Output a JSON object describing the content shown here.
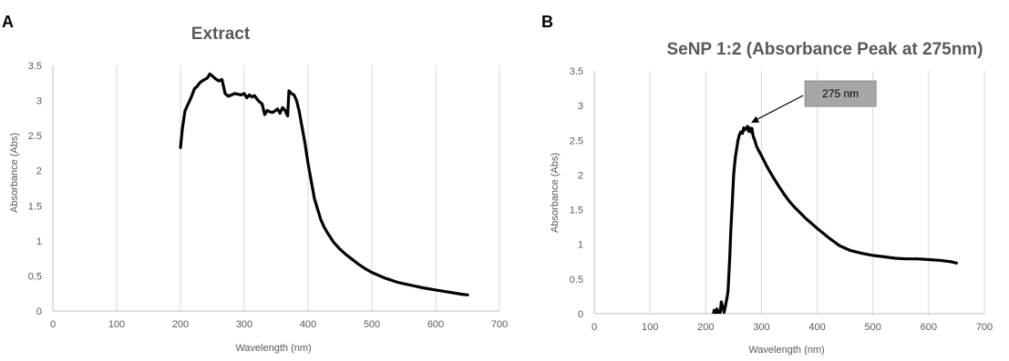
{
  "chart_data": [
    {
      "type": "line",
      "panel": "A",
      "title": "Extract",
      "xlabel": "Wavelength (nm)",
      "ylabel": "Absorbance (Abs)",
      "xlim": [
        0,
        700
      ],
      "ylim": [
        0,
        3.5
      ],
      "xticks": [
        0,
        100,
        200,
        300,
        400,
        500,
        600,
        700
      ],
      "yticks": [
        0,
        0.5,
        1,
        1.5,
        2,
        2.5,
        3,
        3.5
      ],
      "grid": "vertical",
      "legend": "none",
      "series": [
        {
          "x": [
            200,
            203,
            207,
            212,
            217,
            222,
            226,
            230,
            234,
            238,
            242,
            246,
            250,
            255,
            260,
            265,
            270,
            275,
            280,
            285,
            290,
            295,
            300,
            304,
            308,
            312,
            316,
            320,
            324,
            328,
            332,
            336,
            340,
            344,
            348,
            352,
            356,
            360,
            364,
            368,
            370,
            372,
            374,
            378,
            382,
            386,
            390,
            395,
            400,
            405,
            410,
            415,
            420,
            425,
            430,
            440,
            450,
            460,
            470,
            480,
            490,
            500,
            520,
            540,
            560,
            580,
            600,
            620,
            640,
            650
          ],
          "values": [
            2.33,
            2.6,
            2.85,
            2.95,
            3.05,
            3.17,
            3.2,
            3.25,
            3.28,
            3.3,
            3.32,
            3.38,
            3.35,
            3.31,
            3.28,
            3.3,
            3.1,
            3.06,
            3.08,
            3.1,
            3.09,
            3.08,
            3.1,
            3.04,
            3.08,
            3.05,
            3.07,
            3.02,
            2.98,
            2.95,
            2.8,
            2.86,
            2.84,
            2.83,
            2.85,
            2.88,
            2.82,
            2.9,
            2.86,
            2.78,
            3.14,
            3.12,
            3.1,
            3.08,
            3.0,
            2.85,
            2.65,
            2.4,
            2.1,
            1.85,
            1.6,
            1.45,
            1.3,
            1.2,
            1.12,
            0.98,
            0.88,
            0.8,
            0.73,
            0.66,
            0.6,
            0.55,
            0.47,
            0.41,
            0.37,
            0.33,
            0.3,
            0.27,
            0.24,
            0.23
          ]
        }
      ]
    },
    {
      "type": "line",
      "panel": "B",
      "title": "SeNP 1:2 (Absorbance Peak at 275nm)",
      "xlabel": "Wavelength (nm)",
      "ylabel": "Absorbance (Abs)",
      "xlim": [
        0,
        700
      ],
      "ylim": [
        0,
        3.5
      ],
      "xticks": [
        0,
        100,
        200,
        300,
        400,
        500,
        600,
        700
      ],
      "yticks": [
        0,
        0.5,
        1,
        1.5,
        2,
        2.5,
        3,
        3.5
      ],
      "grid": "vertical",
      "legend": "none",
      "annotation": {
        "text": "275 nm",
        "x": 275,
        "y": 2.7
      },
      "series": [
        {
          "x": [
            200,
            205,
            210,
            213,
            215,
            218,
            220,
            222,
            225,
            228,
            230,
            233,
            235,
            238,
            240,
            243,
            245,
            248,
            250,
            253,
            256,
            258,
            260,
            263,
            266,
            268,
            270,
            273,
            275,
            277,
            279,
            281,
            283,
            285,
            288,
            291,
            295,
            300,
            310,
            320,
            330,
            340,
            350,
            360,
            370,
            380,
            390,
            400,
            420,
            440,
            460,
            480,
            500,
            520,
            540,
            560,
            580,
            600,
            620,
            640,
            650
          ],
          "values": [
            -0.05,
            -0.08,
            -0.12,
            -0.06,
            0.05,
            0.0,
            0.07,
            0.03,
            -0.05,
            0.17,
            0.1,
            0.02,
            0.1,
            0.22,
            0.32,
            0.8,
            1.2,
            1.65,
            2.0,
            2.25,
            2.4,
            2.5,
            2.57,
            2.62,
            2.6,
            2.68,
            2.65,
            2.68,
            2.7,
            2.63,
            2.68,
            2.62,
            2.67,
            2.56,
            2.5,
            2.42,
            2.35,
            2.28,
            2.12,
            1.98,
            1.85,
            1.73,
            1.62,
            1.53,
            1.45,
            1.37,
            1.3,
            1.23,
            1.1,
            0.98,
            0.91,
            0.87,
            0.84,
            0.82,
            0.8,
            0.79,
            0.79,
            0.78,
            0.77,
            0.75,
            0.73
          ]
        }
      ]
    }
  ]
}
